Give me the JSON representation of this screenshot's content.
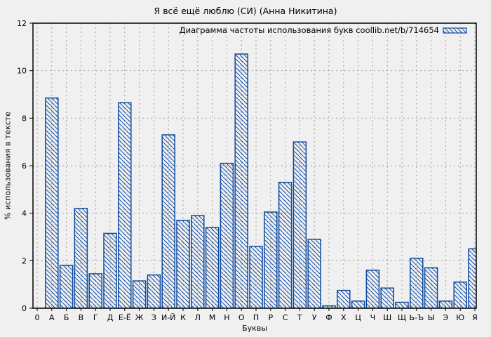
{
  "colors": {
    "bar": "#0e4aa0",
    "grid": "#a0a0a0",
    "axis": "#000000",
    "background": "#f0f0f0"
  },
  "chart_data": {
    "type": "bar",
    "title": "Я всё ещё люблю (СИ) (Анна Никитина)",
    "legend": "Диаграмма частоты использования букв coollib.net/b/714654",
    "legend_position": "top-right",
    "xlabel": "Буквы",
    "ylabel": "% использования в тексте",
    "ylim": [
      0,
      12
    ],
    "ytick_step": 2,
    "grid": true,
    "categories": [
      "0",
      "А",
      "Б",
      "В",
      "Г",
      "Д",
      "Е-Ё",
      "Ж",
      "З",
      "И-Й",
      "К",
      "Л",
      "М",
      "Н",
      "О",
      "П",
      "Р",
      "С",
      "Т",
      "У",
      "Ф",
      "Х",
      "Ц",
      "Ч",
      "Ш",
      "Щ",
      "Ь-Ъ",
      "Ы",
      "Э",
      "Ю",
      "Я"
    ],
    "values": [
      0,
      8.85,
      1.8,
      4.2,
      1.45,
      3.15,
      8.65,
      1.15,
      1.4,
      7.3,
      3.7,
      3.9,
      3.4,
      6.1,
      10.7,
      2.6,
      4.05,
      5.3,
      7.0,
      2.9,
      0.1,
      0.75,
      0.3,
      1.6,
      0.85,
      0.25,
      2.1,
      1.7,
      0.3,
      1.1,
      2.5
    ]
  }
}
